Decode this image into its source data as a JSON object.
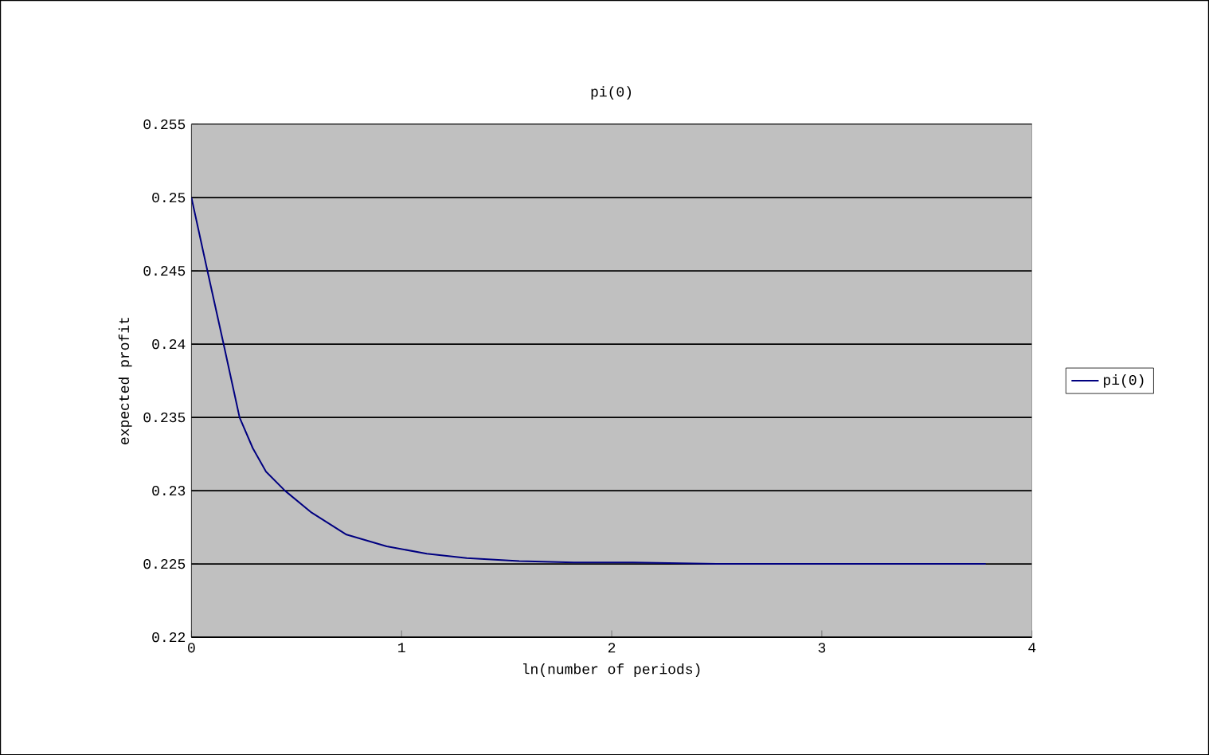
{
  "chart_data": {
    "type": "line",
    "title": "pi(0)",
    "xlabel": "ln(number of periods)",
    "ylabel": "expected profit",
    "xlim": [
      0,
      4
    ],
    "xticks": [
      0,
      1,
      2,
      3,
      4
    ],
    "ylim": [
      0.22,
      0.255
    ],
    "yticks": [
      0.22,
      0.225,
      0.23,
      0.235,
      0.24,
      0.245,
      0.25,
      0.255
    ],
    "grid": "y",
    "legend": "right",
    "marker": "none",
    "line_style": "solid",
    "series": [
      {
        "name": "pi(0)",
        "color": "#000080",
        "x": [
          0,
          0.076,
          0.153,
          0.229,
          0.292,
          0.355,
          0.445,
          0.572,
          0.738,
          0.929,
          1.12,
          1.31,
          1.56,
          1.82,
          2.1,
          2.5,
          3.0,
          3.5,
          3.78
        ],
        "values": [
          0.25,
          0.245,
          0.24,
          0.235,
          0.2329,
          0.2313,
          0.23,
          0.2285,
          0.227,
          0.2262,
          0.2257,
          0.2254,
          0.2252,
          0.2251,
          0.2251,
          0.225,
          0.225,
          0.225,
          0.225
        ]
      }
    ]
  }
}
